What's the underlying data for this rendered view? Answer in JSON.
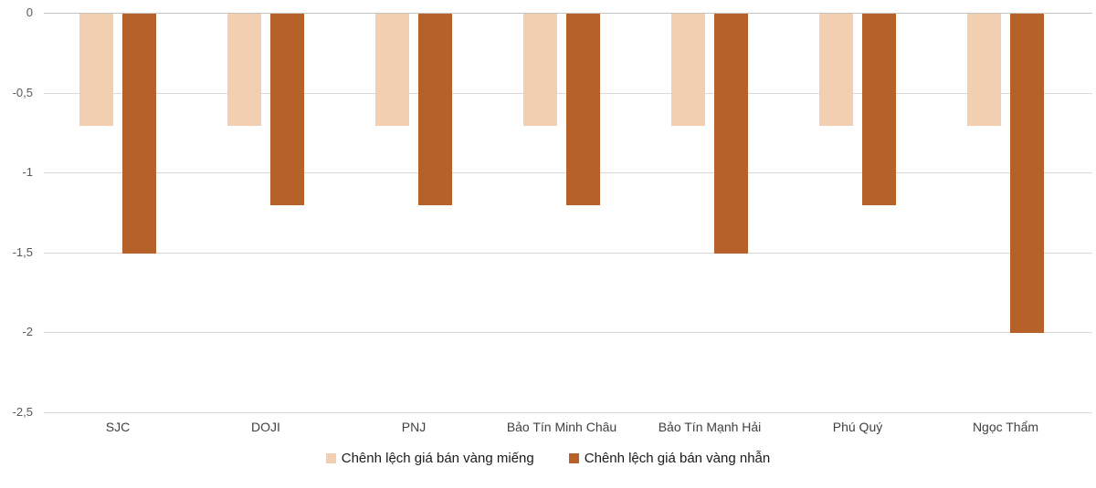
{
  "chart_data": {
    "type": "bar",
    "title": "",
    "categories": [
      "SJC",
      "DOJI",
      "PNJ",
      "Bảo Tín Minh Châu",
      "Bảo Tín Mạnh Hải",
      "Phú Quý",
      "Ngọc Thẩm"
    ],
    "series": [
      {
        "name": "Chênh lệch giá bán vàng miếng",
        "color": "#F2CFB1",
        "values": [
          -0.7,
          -0.7,
          -0.7,
          -0.7,
          -0.7,
          -0.7,
          -0.7
        ]
      },
      {
        "name": "Chênh lệch giá bán vàng nhẫn",
        "color": "#B56129",
        "values": [
          -1.5,
          -1.2,
          -1.2,
          -1.2,
          -1.5,
          -1.2,
          -2.0
        ]
      }
    ],
    "xlabel": "",
    "ylabel": "",
    "ylim": [
      -2.5,
      0
    ],
    "yticks": [
      0,
      -0.5,
      -1,
      -1.5,
      -2,
      -2.5
    ],
    "ytick_labels": [
      "0",
      "-0,5",
      "-1",
      "-1,5",
      "-2",
      "-2,5"
    ],
    "grid": true,
    "legend_position": "bottom",
    "colors": {
      "gridline": "#d9d9d9",
      "axis_line": "#c4c4c4",
      "ytick_text": "#595959",
      "category_text": "#404040",
      "legend_text": "#1a1a1a",
      "background": "#ffffff"
    }
  }
}
